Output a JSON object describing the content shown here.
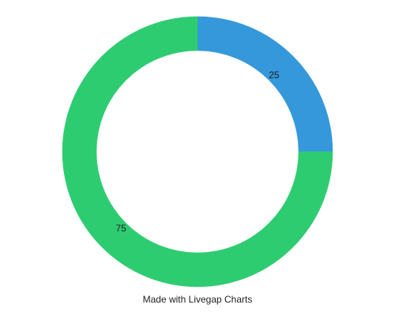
{
  "chart_data": {
    "type": "pie",
    "variant": "donut",
    "slices": [
      {
        "label": "25",
        "value": 25,
        "color": "#3498db"
      },
      {
        "label": "75",
        "value": 75,
        "color": "#2ecc71"
      }
    ],
    "start": "top",
    "direction": "clockwise",
    "legend": "none"
  },
  "footer": {
    "credit": "Made with Livegap Charts"
  }
}
